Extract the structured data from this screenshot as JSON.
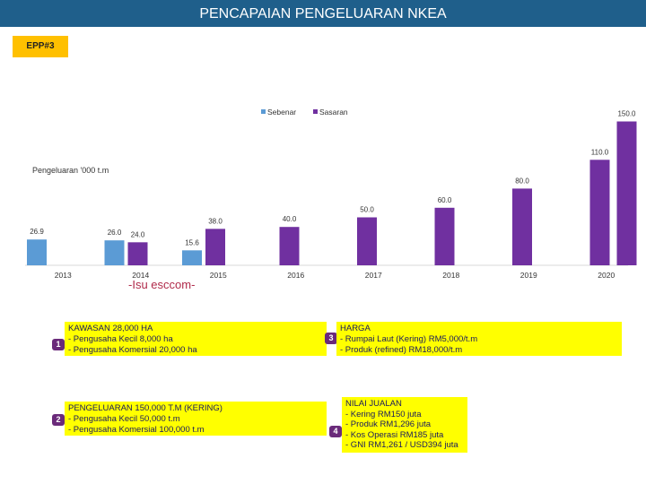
{
  "header": {
    "title": "PENCAPAIAN PENGELUARAN NKEA"
  },
  "tag": {
    "label": "EPP#3"
  },
  "colors": {
    "sebenar": "#5b9bd5",
    "sasaran": "#7030a0",
    "title_bar": "#1f5f8b",
    "tag": "#ffc000",
    "box": "#ffff00"
  },
  "chart_data": {
    "type": "bar",
    "ylabel": "Pengeluaran '000 t.m",
    "legend": {
      "placement": "top-right",
      "entries": [
        "Sebenar",
        "Sasaran"
      ]
    },
    "categories": [
      "2013",
      "2014",
      "2015",
      "2016",
      "2017",
      "2018",
      "2019",
      "2020"
    ],
    "series": [
      {
        "name": "Sebenar",
        "values": [
          26.9,
          26.0,
          15.6,
          null,
          null,
          null,
          null,
          null
        ]
      },
      {
        "name": "Sasaran",
        "values": [
          null,
          24.0,
          38.0,
          40.0,
          50.0,
          60.0,
          80.0,
          110.0
        ]
      }
    ],
    "extra_bar": {
      "category": "2020",
      "series": "Sasaran",
      "value": 150.0
    },
    "ylim": [
      0,
      150
    ],
    "grid": false
  },
  "annotation": {
    "issue_text": "-Isu esccom-"
  },
  "boxes": [
    {
      "number": "1",
      "lines": [
        "KAWASAN 28,000 HA",
        "- Pengusaha Kecil 8,000 ha",
        "- Pengusaha Komersial 20,000 ha"
      ]
    },
    {
      "number": "2",
      "lines": [
        "PENGELUARAN 150,000 T.M (KERING)",
        "- Pengusaha Kecil 50,000 t.m",
        "- Pengusaha Komersial 100,000 t.m"
      ]
    },
    {
      "number": "3",
      "lines": [
        "HARGA",
        "- Rumpai Laut (Kering) RM5,000/t.m",
        "- Produk (refined) RM18,000/t.m"
      ]
    },
    {
      "number": "4",
      "lines": [
        "NILAI JUALAN",
        "- Kering RM150 juta",
        "- Produk RM1,296 juta",
        "- Kos Operasi RM185 juta",
        "- GNI RM1,261 / USD394 juta"
      ]
    }
  ]
}
